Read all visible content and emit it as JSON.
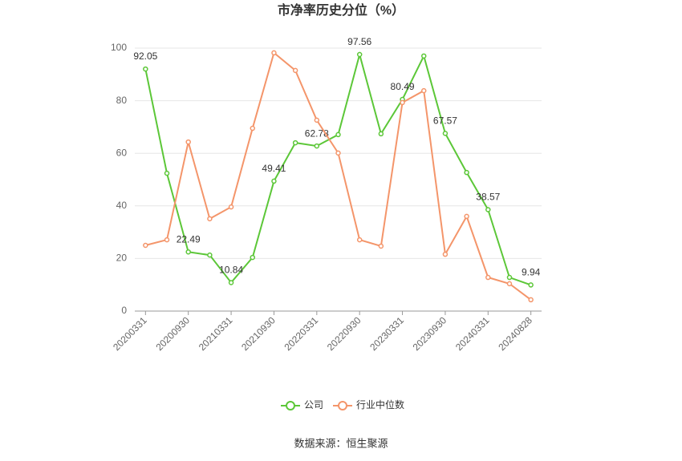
{
  "chart_data": {
    "type": "line",
    "title": "市净率历史分位（%）",
    "categories": [
      "20200331",
      null,
      "20200930",
      null,
      "20210331",
      null,
      "20210930",
      null,
      "20220331",
      null,
      "20220930",
      null,
      "20230331",
      null,
      "20230930",
      null,
      "20240331",
      null,
      "20240828"
    ],
    "series": [
      {
        "name": "公司",
        "color": "#5cc738",
        "values": [
          92.05,
          52.4,
          22.49,
          21.3,
          10.84,
          20.4,
          49.41,
          64.0,
          62.78,
          67.1,
          97.56,
          67.4,
          80.49,
          97.0,
          67.57,
          52.7,
          38.57,
          12.8,
          9.94
        ],
        "value_labels": [
          "92.05",
          null,
          "22.49",
          null,
          "10.84",
          null,
          "49.41",
          null,
          "62.78",
          null,
          "97.56",
          null,
          "80.49",
          null,
          "67.57",
          null,
          "38.57",
          null,
          "9.94"
        ]
      },
      {
        "name": "行业中位数",
        "color": "#f4956a",
        "values": [
          25.0,
          27.1,
          64.3,
          35.1,
          39.6,
          69.5,
          98.2,
          91.5,
          72.6,
          60.1,
          27.1,
          24.7,
          79.3,
          83.8,
          21.6,
          36.0,
          12.8,
          10.4,
          4.3
        ]
      }
    ],
    "ylim": [
      0,
      100
    ],
    "yticks": [
      0,
      20,
      40,
      60,
      80,
      100
    ],
    "grid": true,
    "source": "数据来源：恒生聚源"
  }
}
